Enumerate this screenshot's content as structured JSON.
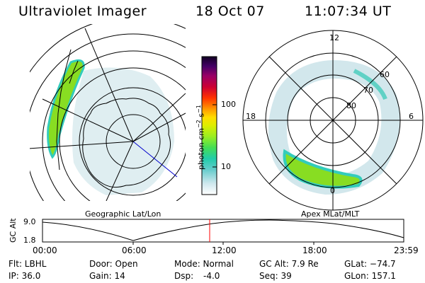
{
  "header": {
    "instrument": "Ultraviolet Imager",
    "date": "18 Oct 07",
    "time": "11:07:34 UT"
  },
  "colorbar": {
    "label": "photon cm",
    "exp1": "−2",
    "mid": "s",
    "exp2": "−1",
    "ticks": [
      "100",
      "10"
    ]
  },
  "geo_panel": {
    "caption": "Geographic Lat/Lon"
  },
  "polar_panel": {
    "caption": "Apex MLat/MLT",
    "mlt_labels": {
      "top": "12",
      "left": "18",
      "right": "6",
      "bottom": "0"
    },
    "lat_labels": [
      "60",
      "70",
      "80"
    ]
  },
  "altitude_plot": {
    "ylabel": "GC Alt",
    "yticks": [
      "9.0",
      "1.8"
    ],
    "xticks": [
      "00:00",
      "06:00",
      "12:00",
      "18:00",
      "23:59"
    ],
    "current_time_marker": "11:07"
  },
  "info": {
    "filter": "Flt: LBHL",
    "ip": "IP: 36.0",
    "door": "Door: Open",
    "gain": "Gain: 14",
    "mode": "Mode: Normal",
    "dsp_label": "Dsp:",
    "dsp_value": "-4.0",
    "gc_alt": "GC Alt: 7.9 Re",
    "seq": "Seq: 39",
    "glat": "GLat: −74.7",
    "glon": "GLon: 157.1"
  },
  "colors": {
    "marker": "#ff0000",
    "aurora_green": "#88dd22",
    "aurora_cyan": "#33ccbb"
  }
}
